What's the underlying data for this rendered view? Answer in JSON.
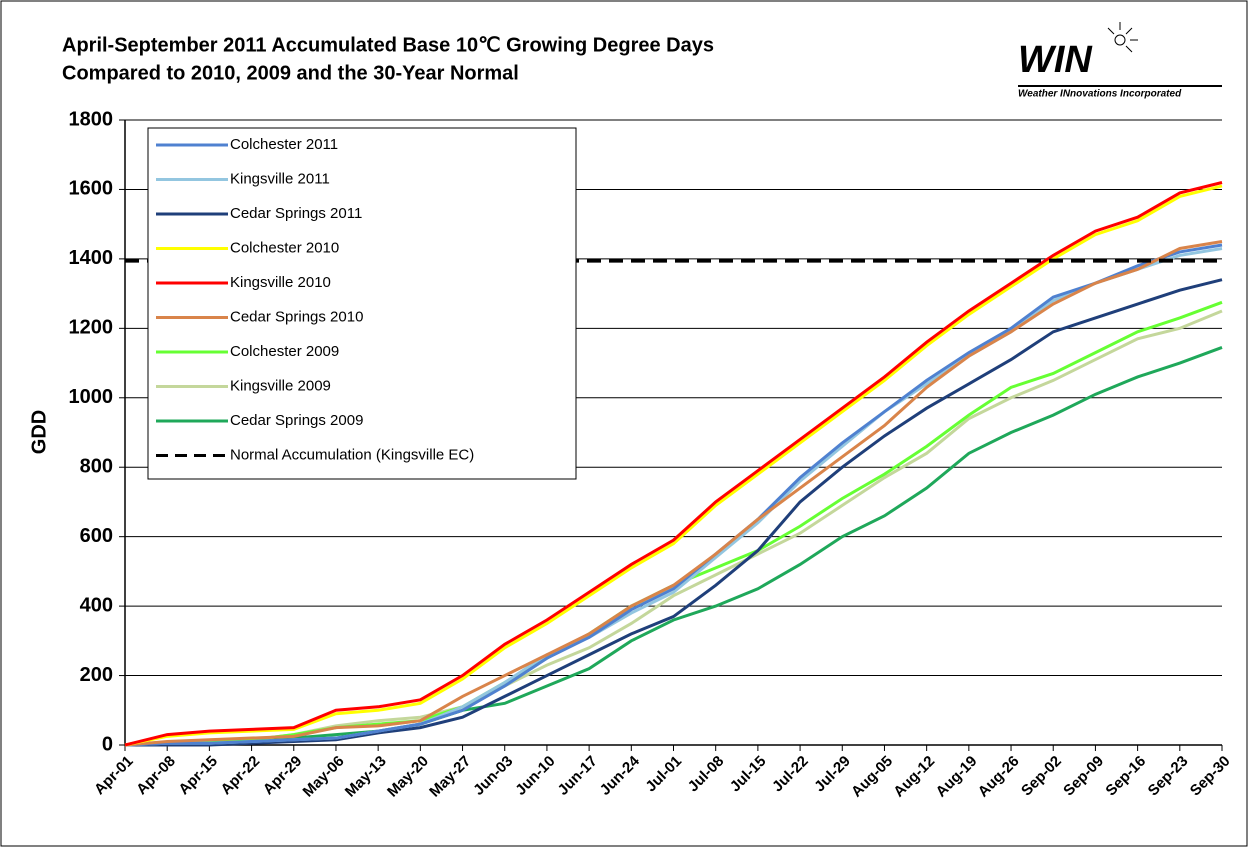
{
  "chart_data": {
    "type": "line",
    "title": [
      "April-September 2011 Accumulated Base 10℃ Growing Degree Days",
      "Compared to 2010, 2009 and the 30-Year Normal"
    ],
    "logo": {
      "text": "WIN",
      "subtitle": "Weather INnovations Incorporated"
    },
    "ylabel": "GDD",
    "categories": [
      "Apr-01",
      "Apr-08",
      "Apr-15",
      "Apr-22",
      "Apr-29",
      "May-06",
      "May-13",
      "May-20",
      "May-27",
      "Jun-03",
      "Jun-10",
      "Jun-17",
      "Jun-24",
      "Jul-01",
      "Jul-08",
      "Jul-15",
      "Jul-22",
      "Jul-29",
      "Aug-05",
      "Aug-12",
      "Aug-19",
      "Aug-26",
      "Sep-02",
      "Sep-09",
      "Sep-16",
      "Sep-23",
      "Sep-30"
    ],
    "ylim": [
      0,
      1800
    ],
    "yticks": [
      0,
      200,
      400,
      600,
      800,
      1000,
      1200,
      1400,
      1600,
      1800
    ],
    "grid": true,
    "legend": "upper left",
    "series": [
      {
        "name": "Colchester 2011",
        "color": "#4f81d0",
        "values": [
          0,
          5,
          5,
          10,
          15,
          20,
          40,
          60,
          100,
          170,
          250,
          310,
          390,
          450,
          550,
          650,
          770,
          870,
          960,
          1050,
          1130,
          1200,
          1290,
          1330,
          1380,
          1420,
          1440
        ]
      },
      {
        "name": "Kingsville 2011",
        "color": "#93c6e0",
        "values": [
          0,
          5,
          5,
          10,
          15,
          20,
          40,
          60,
          110,
          180,
          260,
          310,
          380,
          440,
          540,
          640,
          760,
          860,
          960,
          1040,
          1120,
          1190,
          1280,
          1330,
          1370,
          1410,
          1430
        ]
      },
      {
        "name": "Cedar Springs 2011",
        "color": "#1f3f7a",
        "values": [
          0,
          0,
          0,
          5,
          10,
          15,
          35,
          50,
          80,
          140,
          200,
          260,
          320,
          370,
          460,
          560,
          700,
          800,
          890,
          970,
          1040,
          1110,
          1190,
          1230,
          1270,
          1310,
          1340
        ]
      },
      {
        "name": "Colchester 2010",
        "color": "#ffff00",
        "values": [
          0,
          25,
          35,
          40,
          45,
          90,
          100,
          120,
          190,
          280,
          350,
          430,
          510,
          580,
          690,
          780,
          870,
          960,
          1050,
          1150,
          1240,
          1320,
          1400,
          1470,
          1510,
          1580,
          1610
        ]
      },
      {
        "name": "Kingsville 2010",
        "color": "#ff0000",
        "values": [
          0,
          30,
          40,
          45,
          50,
          100,
          110,
          130,
          200,
          290,
          360,
          440,
          520,
          590,
          700,
          790,
          880,
          970,
          1060,
          1160,
          1250,
          1330,
          1410,
          1480,
          1520,
          1590,
          1620
        ]
      },
      {
        "name": "Cedar Springs 2010",
        "color": "#d9844a",
        "values": [
          0,
          10,
          15,
          20,
          25,
          50,
          55,
          70,
          140,
          200,
          260,
          320,
          400,
          460,
          550,
          650,
          740,
          830,
          920,
          1030,
          1120,
          1190,
          1270,
          1330,
          1370,
          1430,
          1450
        ]
      },
      {
        "name": "Colchester 2009",
        "color": "#66ff33",
        "values": [
          0,
          5,
          10,
          15,
          30,
          50,
          60,
          70,
          110,
          180,
          250,
          320,
          400,
          460,
          510,
          560,
          630,
          710,
          780,
          860,
          950,
          1030,
          1070,
          1130,
          1190,
          1230,
          1275
        ]
      },
      {
        "name": "Kingsville 2009",
        "color": "#c4d79b",
        "values": [
          0,
          5,
          10,
          15,
          30,
          55,
          70,
          80,
          110,
          170,
          230,
          280,
          350,
          430,
          490,
          550,
          610,
          690,
          770,
          840,
          940,
          1000,
          1050,
          1110,
          1170,
          1200,
          1250
        ]
      },
      {
        "name": "Cedar Springs 2009",
        "color": "#1fa85a",
        "values": [
          0,
          5,
          10,
          15,
          20,
          30,
          40,
          60,
          100,
          120,
          170,
          220,
          300,
          360,
          400,
          450,
          520,
          600,
          660,
          740,
          840,
          900,
          950,
          1010,
          1060,
          1100,
          1145
        ]
      },
      {
        "name": "Normal Accumulation  (Kingsville EC)",
        "color": "#000000",
        "dashed": true,
        "values": [
          1395,
          1395,
          1395,
          1395,
          1395,
          1395,
          1395,
          1395,
          1395,
          1395,
          1395,
          1395,
          1395,
          1395,
          1395,
          1395,
          1395,
          1395,
          1395,
          1395,
          1395,
          1395,
          1395,
          1395,
          1395,
          1395,
          1395
        ]
      }
    ]
  }
}
